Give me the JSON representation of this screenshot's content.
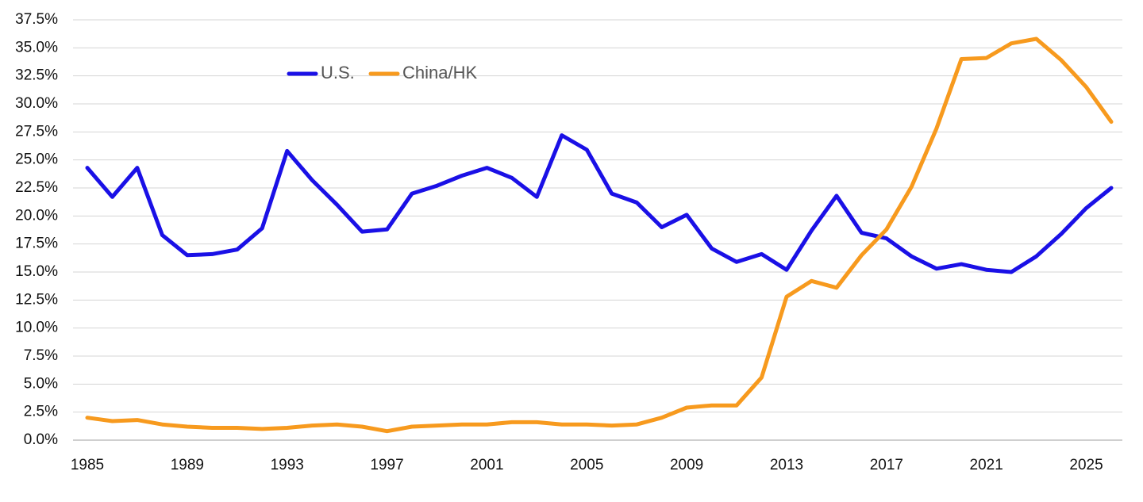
{
  "chart_data": {
    "type": "line",
    "title": "",
    "xlabel": "",
    "ylabel": "",
    "x_tick_labels": [
      "1985",
      "1989",
      "1993",
      "1997",
      "2001",
      "2005",
      "2009",
      "2013",
      "2017",
      "2021",
      "2025"
    ],
    "y_tick_labels": [
      "0.0%",
      "2.5%",
      "5.0%",
      "7.5%",
      "10.0%",
      "12.5%",
      "15.0%",
      "17.5%",
      "20.0%",
      "22.5%",
      "25.0%",
      "27.5%",
      "30.0%",
      "32.5%",
      "35.0%",
      "37.5%"
    ],
    "ylim": [
      0,
      37.5
    ],
    "xlim": [
      1985,
      2026
    ],
    "grid": "horizontal",
    "legend_position": "top-left",
    "x": [
      1985,
      1986,
      1987,
      1988,
      1989,
      1990,
      1991,
      1992,
      1993,
      1994,
      1995,
      1996,
      1997,
      1998,
      1999,
      2000,
      2001,
      2002,
      2003,
      2004,
      2005,
      2006,
      2007,
      2008,
      2009,
      2010,
      2011,
      2012,
      2013,
      2014,
      2015,
      2016,
      2017,
      2018,
      2019,
      2020,
      2021,
      2022,
      2023,
      2024,
      2025,
      2026
    ],
    "series": [
      {
        "name": "U.S.",
        "color": "#1a10e6",
        "values": [
          24.3,
          21.7,
          24.3,
          18.3,
          16.5,
          16.6,
          17.0,
          18.9,
          25.8,
          23.2,
          21.0,
          18.6,
          18.8,
          22.0,
          22.7,
          23.6,
          24.3,
          23.4,
          21.7,
          27.2,
          25.9,
          22.0,
          21.2,
          19.0,
          20.1,
          17.1,
          15.9,
          16.6,
          15.2,
          18.7,
          21.8,
          18.5,
          18.0,
          16.4,
          15.3,
          15.7,
          15.2,
          15.0,
          16.4,
          18.4,
          20.7,
          22.5
        ]
      },
      {
        "name": "China/HK",
        "color": "#f79a1e",
        "values": [
          2.0,
          1.7,
          1.8,
          1.4,
          1.2,
          1.1,
          1.1,
          1.0,
          1.1,
          1.3,
          1.4,
          1.2,
          0.8,
          1.2,
          1.3,
          1.4,
          1.4,
          1.6,
          1.6,
          1.4,
          1.4,
          1.3,
          1.4,
          2.0,
          2.9,
          3.1,
          3.1,
          5.6,
          12.8,
          14.2,
          13.6,
          16.5,
          18.8,
          22.6,
          27.8,
          34.0,
          34.1,
          35.4,
          35.8,
          33.9,
          31.5,
          28.4
        ]
      }
    ]
  }
}
